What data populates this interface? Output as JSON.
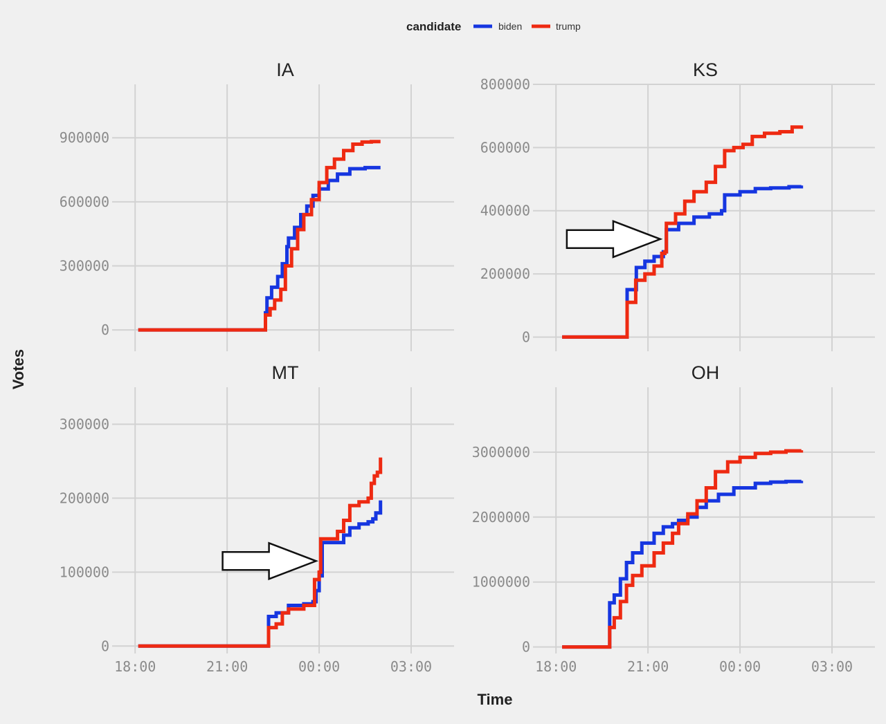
{
  "chart_data": {
    "type": "line",
    "xlabel": "Time",
    "ylabel": "Votes",
    "legend": {
      "title": "candidate",
      "position": "top",
      "entries": [
        {
          "name": "biden",
          "color": "#1636e0"
        },
        {
          "name": "trump",
          "color": "#ee2a12"
        }
      ]
    },
    "x_ticks": [
      "18:00",
      "21:00",
      "00:00",
      "03:00"
    ],
    "grid": true,
    "panels": [
      {
        "title": "IA",
        "ylim": [
          -100000,
          1150000
        ],
        "yticks": [
          "0",
          "300000",
          "600000",
          "900000"
        ],
        "series": [
          {
            "name": "biden",
            "x": [
              18.1,
              22.2,
              22.25,
              22.3,
              22.45,
              22.65,
              22.8,
              22.95,
              23.0,
              23.2,
              23.4,
              23.6,
              23.8,
              24.0,
              24.3,
              24.6,
              25.0,
              25.5,
              26.0
            ],
            "y": [
              0,
              0,
              80000,
              150000,
              200000,
              250000,
              310000,
              390000,
              430000,
              480000,
              540000,
              580000,
              630000,
              660000,
              700000,
              730000,
              755000,
              760000,
              760000
            ]
          },
          {
            "name": "trump",
            "x": [
              18.1,
              22.2,
              22.25,
              22.4,
              22.55,
              22.75,
              22.9,
              23.1,
              23.3,
              23.5,
              23.75,
              24.0,
              24.25,
              24.5,
              24.8,
              25.1,
              25.4,
              25.7,
              26.0
            ],
            "y": [
              0,
              0,
              70000,
              100000,
              140000,
              190000,
              300000,
              380000,
              470000,
              540000,
              610000,
              690000,
              760000,
              800000,
              840000,
              870000,
              880000,
              882000,
              882000
            ]
          }
        ]
      },
      {
        "title": "KS",
        "ylim": [
          -45000,
          800000
        ],
        "yticks": [
          "0",
          "200000",
          "400000",
          "600000",
          "800000"
        ],
        "series": [
          {
            "name": "biden",
            "x": [
              18.2,
              20.3,
              20.32,
              20.6,
              20.62,
              20.9,
              21.2,
              21.5,
              21.6,
              22.0,
              22.5,
              23.0,
              23.4,
              23.5,
              24.0,
              24.5,
              25.0,
              25.6,
              26.0
            ],
            "y": [
              0,
              0,
              150000,
              150000,
              220000,
              240000,
              255000,
              270000,
              340000,
              360000,
              380000,
              390000,
              400000,
              450000,
              460000,
              470000,
              472000,
              476000,
              480000
            ]
          },
          {
            "name": "trump",
            "x": [
              18.2,
              20.3,
              20.32,
              20.55,
              20.6,
              20.9,
              21.2,
              21.45,
              21.55,
              21.6,
              21.9,
              22.2,
              22.5,
              22.9,
              23.2,
              23.5,
              23.8,
              24.1,
              24.4,
              24.8,
              25.3,
              25.7,
              26.0
            ],
            "y": [
              0,
              0,
              110000,
              110000,
              180000,
              200000,
              225000,
              265000,
              270000,
              360000,
              390000,
              430000,
              460000,
              490000,
              540000,
              590000,
              600000,
              610000,
              635000,
              645000,
              650000,
              665000,
              670000
            ]
          }
        ]
      },
      {
        "title": "MT",
        "ylim": [
          -10000,
          350000
        ],
        "yticks": [
          "0",
          "100000",
          "200000",
          "300000"
        ],
        "series": [
          {
            "name": "biden",
            "x": [
              18.1,
              22.2,
              22.3,
              22.35,
              22.6,
              23.0,
              23.5,
              23.8,
              23.9,
              24.0,
              24.1,
              24.5,
              24.8,
              25.0,
              25.3,
              25.6,
              25.75,
              25.85,
              26.0
            ],
            "y": [
              0,
              0,
              0,
              40000,
              45000,
              55000,
              57000,
              60000,
              75000,
              95000,
              140000,
              140000,
              150000,
              160000,
              165000,
              168000,
              172000,
              180000,
              197000
            ]
          },
          {
            "name": "trump",
            "x": [
              18.1,
              22.2,
              22.3,
              22.35,
              22.6,
              22.8,
              23.0,
              23.5,
              23.8,
              23.85,
              24.0,
              24.05,
              24.4,
              24.6,
              24.8,
              25.0,
              25.3,
              25.6,
              25.7,
              25.8,
              25.9,
              26.0
            ],
            "y": [
              0,
              0,
              0,
              25000,
              30000,
              45000,
              50000,
              55000,
              55000,
              90000,
              100000,
              145000,
              145000,
              155000,
              170000,
              190000,
              195000,
              200000,
              220000,
              230000,
              235000,
              255000
            ]
          }
        ]
      },
      {
        "title": "OH",
        "ylim": [
          -100000,
          4000000
        ],
        "yticks": [
          "0",
          "1000000",
          "2000000",
          "3000000"
        ],
        "series": [
          {
            "name": "biden",
            "x": [
              18.2,
              19.7,
              19.75,
              19.9,
              20.1,
              20.3,
              20.5,
              20.8,
              21.2,
              21.5,
              21.8,
              22.0,
              22.3,
              22.6,
              22.9,
              23.3,
              23.8,
              24.5,
              25.0,
              25.5,
              26.0
            ],
            "y": [
              0,
              0,
              680000,
              800000,
              1050000,
              1300000,
              1450000,
              1600000,
              1750000,
              1850000,
              1900000,
              1950000,
              2000000,
              2150000,
              2250000,
              2350000,
              2450000,
              2520000,
              2540000,
              2550000,
              2560000
            ]
          },
          {
            "name": "trump",
            "x": [
              18.2,
              19.7,
              19.75,
              19.9,
              20.1,
              20.3,
              20.5,
              20.8,
              21.2,
              21.5,
              21.8,
              22.0,
              22.3,
              22.6,
              22.9,
              23.2,
              23.6,
              24.0,
              24.5,
              25.0,
              25.5,
              26.0
            ],
            "y": [
              0,
              0,
              300000,
              450000,
              700000,
              950000,
              1100000,
              1250000,
              1450000,
              1600000,
              1750000,
              1900000,
              2050000,
              2250000,
              2450000,
              2700000,
              2850000,
              2920000,
              2980000,
              3000000,
              3020000,
              3030000
            ]
          }
        ]
      }
    ]
  },
  "annotations": [
    {
      "panel": "KS",
      "shape": "arrow-right",
      "at_x": 21.4,
      "at_y": 310000
    },
    {
      "panel": "MT",
      "shape": "arrow-right",
      "at_x": 23.9,
      "at_y": 115000
    }
  ]
}
